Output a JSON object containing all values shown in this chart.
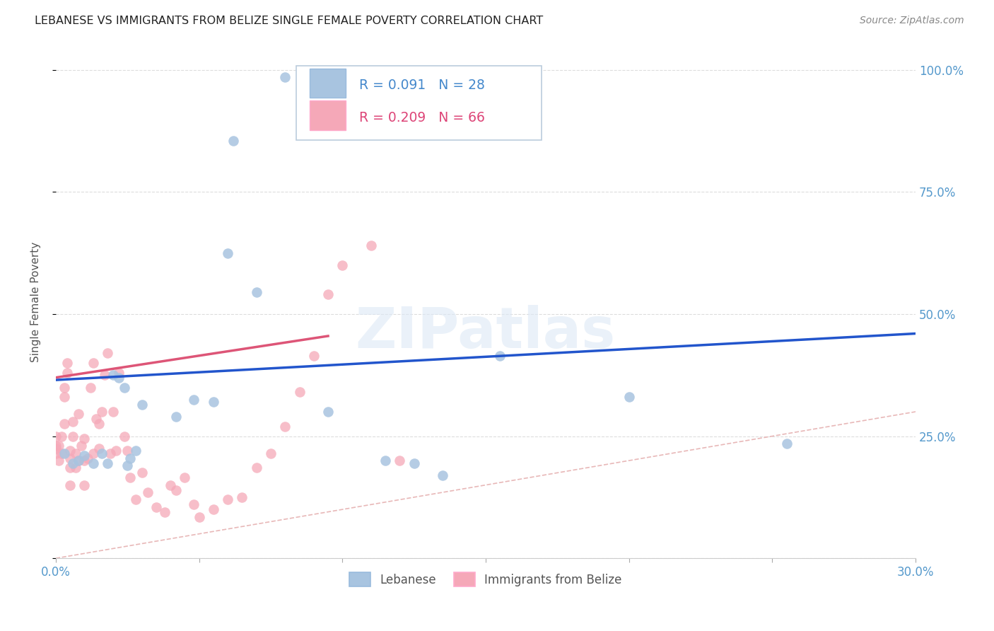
{
  "title": "LEBANESE VS IMMIGRANTS FROM BELIZE SINGLE FEMALE POVERTY CORRELATION CHART",
  "source": "Source: ZipAtlas.com",
  "ylabel": "Single Female Poverty",
  "xlim": [
    0.0,
    0.3
  ],
  "ylim": [
    0.0,
    1.05
  ],
  "yticks": [
    0.0,
    0.25,
    0.5,
    0.75,
    1.0
  ],
  "yticklabels": [
    "",
    "25.0%",
    "50.0%",
    "75.0%",
    "100.0%"
  ],
  "xticks": [
    0.0,
    0.05,
    0.1,
    0.15,
    0.2,
    0.25,
    0.3
  ],
  "xticklabels": [
    "0.0%",
    "",
    "",
    "",
    "",
    "",
    "30.0%"
  ],
  "r_lebanese": 0.091,
  "n_lebanese": 28,
  "r_belize": 0.209,
  "n_belize": 66,
  "lebanese_color": "#a8c4e0",
  "belize_color": "#f5a8b8",
  "lebanese_line_color": "#2255cc",
  "belize_line_color": "#dd5577",
  "diagonal_color": "#e8b8b8",
  "lebanese_x": [
    0.003,
    0.006,
    0.008,
    0.01,
    0.013,
    0.016,
    0.018,
    0.02,
    0.022,
    0.024,
    0.025,
    0.026,
    0.028,
    0.03,
    0.042,
    0.048,
    0.055,
    0.06,
    0.062,
    0.07,
    0.08,
    0.095,
    0.115,
    0.125,
    0.135,
    0.155,
    0.2,
    0.255
  ],
  "lebanese_y": [
    0.215,
    0.195,
    0.2,
    0.21,
    0.195,
    0.215,
    0.195,
    0.375,
    0.37,
    0.35,
    0.19,
    0.205,
    0.22,
    0.315,
    0.29,
    0.325,
    0.32,
    0.625,
    0.855,
    0.545,
    0.985,
    0.3,
    0.2,
    0.195,
    0.17,
    0.415,
    0.33,
    0.235
  ],
  "belize_x": [
    0.0,
    0.0,
    0.0,
    0.0,
    0.001,
    0.001,
    0.002,
    0.002,
    0.003,
    0.003,
    0.003,
    0.004,
    0.004,
    0.005,
    0.005,
    0.005,
    0.005,
    0.006,
    0.006,
    0.007,
    0.007,
    0.008,
    0.008,
    0.009,
    0.01,
    0.01,
    0.01,
    0.011,
    0.012,
    0.013,
    0.013,
    0.014,
    0.015,
    0.015,
    0.016,
    0.017,
    0.018,
    0.019,
    0.02,
    0.021,
    0.022,
    0.024,
    0.025,
    0.026,
    0.028,
    0.03,
    0.032,
    0.035,
    0.038,
    0.04,
    0.042,
    0.045,
    0.048,
    0.05,
    0.055,
    0.06,
    0.065,
    0.07,
    0.075,
    0.08,
    0.085,
    0.09,
    0.095,
    0.1,
    0.11,
    0.12
  ],
  "belize_y": [
    0.215,
    0.225,
    0.23,
    0.25,
    0.2,
    0.23,
    0.215,
    0.25,
    0.275,
    0.33,
    0.35,
    0.38,
    0.4,
    0.15,
    0.185,
    0.205,
    0.22,
    0.25,
    0.28,
    0.185,
    0.215,
    0.2,
    0.295,
    0.23,
    0.15,
    0.2,
    0.245,
    0.205,
    0.35,
    0.4,
    0.215,
    0.285,
    0.225,
    0.275,
    0.3,
    0.375,
    0.42,
    0.215,
    0.3,
    0.22,
    0.38,
    0.25,
    0.22,
    0.165,
    0.12,
    0.175,
    0.135,
    0.105,
    0.095,
    0.15,
    0.14,
    0.165,
    0.11,
    0.085,
    0.1,
    0.12,
    0.125,
    0.185,
    0.215,
    0.27,
    0.34,
    0.415,
    0.54,
    0.6,
    0.64,
    0.2
  ],
  "leb_line_x0": 0.0,
  "leb_line_x1": 0.3,
  "leb_line_y0": 0.365,
  "leb_line_y1": 0.46,
  "bel_line_x0": 0.0,
  "bel_line_x1": 0.095,
  "bel_line_y0": 0.37,
  "bel_line_y1": 0.455
}
